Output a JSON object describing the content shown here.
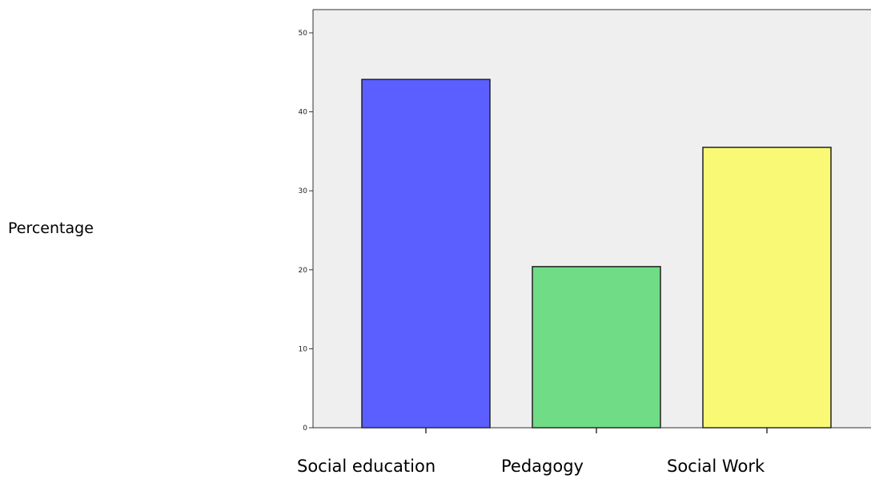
{
  "chart_data": {
    "type": "bar",
    "title": "",
    "xlabel": "",
    "ylabel": "Percentage",
    "categories": [
      "Social education",
      "Pedagogy",
      "Social Work"
    ],
    "values": [
      44.1,
      20.4,
      35.5
    ],
    "colors": [
      "#5b5fff",
      "#70dc86",
      "#f9f976"
    ],
    "ylim": [
      0,
      50
    ],
    "yticks": [
      "0",
      "10",
      "20",
      "30",
      "40",
      "50"
    ],
    "grid": false,
    "legend": "none",
    "plot_background": "#efefef"
  }
}
